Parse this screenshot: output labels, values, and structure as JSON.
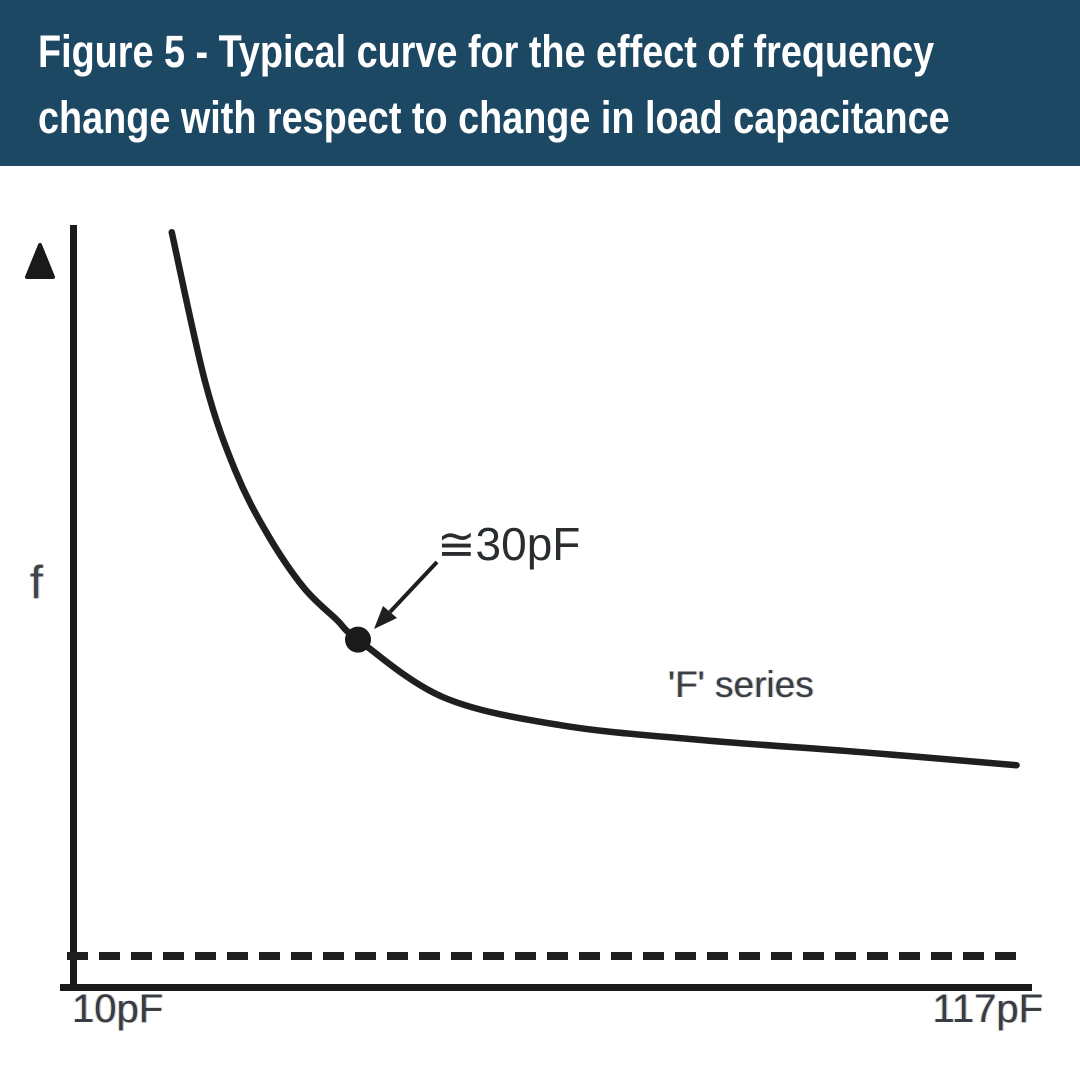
{
  "header": {
    "title_line1": "Figure 5 - Typical curve for the effect of frequency",
    "title_line2": "change with respect to change in load capacitance",
    "background_color": "#1d4863",
    "text_color": "#ffffff"
  },
  "chart": {
    "y_axis_label": "f",
    "x_min_label": "10pF",
    "x_max_label": "117pF",
    "annotation_label": "≅30pF",
    "series_label": "'F' series",
    "line_color": "#1f1f1f",
    "label_color": "#383d44"
  },
  "chart_data": {
    "type": "line",
    "title": "Typical curve for the effect of frequency change with respect to change in load capacitance",
    "xlabel": "Load capacitance",
    "ylabel": "f",
    "x_axis_tick_labels": [
      "10pF",
      "117pF"
    ],
    "x_range_pf": [
      10,
      117
    ],
    "grid": false,
    "legend_position": "inline-right-of-curve",
    "baseline": {
      "style": "dashed",
      "position_norm_y": 0.0
    },
    "series": [
      {
        "name": "'F' series",
        "style": "solid",
        "points_norm": [
          [
            0.106,
            0.99
          ],
          [
            0.141,
            0.784
          ],
          [
            0.172,
            0.664
          ],
          [
            0.205,
            0.578
          ],
          [
            0.243,
            0.504
          ],
          [
            0.278,
            0.459
          ],
          [
            0.3,
            0.432
          ],
          [
            0.389,
            0.353
          ],
          [
            0.51,
            0.315
          ],
          [
            0.653,
            0.295
          ],
          [
            0.823,
            0.278
          ],
          [
            0.986,
            0.26
          ]
        ]
      }
    ],
    "annotations": [
      {
        "label": "≅30pF",
        "marker": "filled-dot",
        "target_norm": [
          0.3,
          0.432
        ]
      }
    ]
  }
}
